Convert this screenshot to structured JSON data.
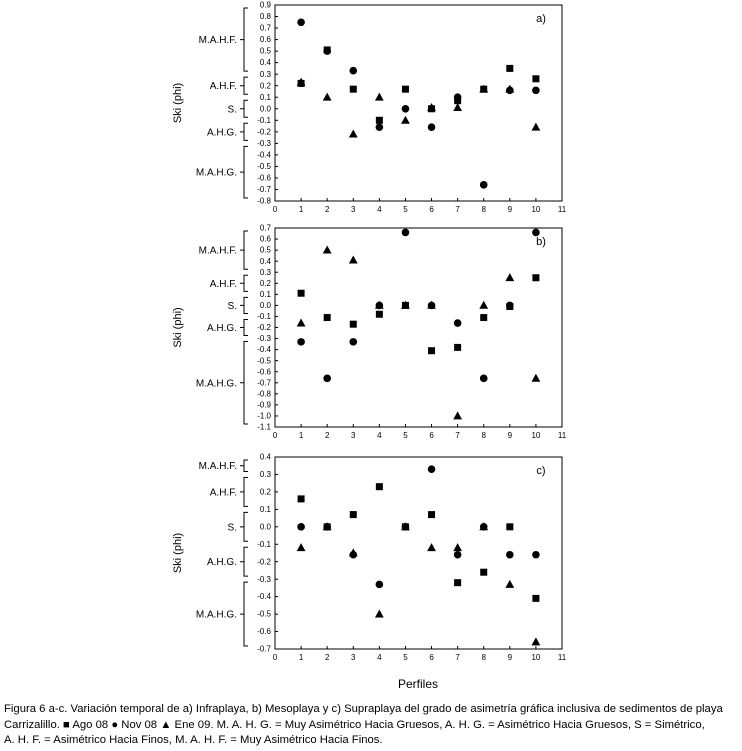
{
  "figure": {
    "x_axis_label": "Perfiles",
    "caption": {
      "line1": "Figura 6 a-c. Variación temporal de a) Infraplaya, b) Mesoplaya y c) Supraplaya del grado de asimetría gráfica inclusiva de sedimentos de playa",
      "line2_prefix": "Carrizalillo.",
      "legend_ago": "Ago 08",
      "legend_nov": "Nov 08",
      "legend_ene": "Ene 09.",
      "line2_suffix": "M. A. H. G. = Muy Asimétrico Hacia Gruesos, A. H. G. = Asimétrico Hacia Gruesos, S = Simétrico,",
      "line3": "A. H. F. = Asimétrico Hacia Finos, M. A. H. F. = Muy Asimétrico Hacia Finos."
    }
  },
  "chart_data": [
    {
      "type": "scatter",
      "panel_label": "a)",
      "ylabel": "Ski (phi)",
      "xlim": [
        0,
        11
      ],
      "ylim": [
        -0.8,
        0.9
      ],
      "yticks": [
        0.9,
        0.8,
        0.7,
        0.6,
        0.5,
        0.4,
        0.3,
        0.2,
        0.1,
        0.0,
        -0.1,
        -0.2,
        -0.3,
        -0.4,
        -0.5,
        -0.6,
        -0.7,
        -0.8
      ],
      "xticks": [
        0,
        1,
        2,
        3,
        4,
        5,
        6,
        7,
        8,
        9,
        10,
        11
      ],
      "classes": [
        {
          "label": "M.A.H.F.",
          "range": [
            0.3,
            0.9
          ]
        },
        {
          "label": "A.H.F.",
          "range": [
            0.1,
            0.3
          ]
        },
        {
          "label": "S.",
          "range": [
            -0.1,
            0.1
          ]
        },
        {
          "label": "A.H.G.",
          "range": [
            -0.3,
            -0.1
          ]
        },
        {
          "label": "M.A.H.G.",
          "range": [
            -0.8,
            -0.3
          ]
        }
      ],
      "series": [
        {
          "name": "Ago 08",
          "marker": "square",
          "x": [
            1,
            2,
            3,
            4,
            5,
            6,
            7,
            8,
            9,
            10
          ],
          "y": [
            0.22,
            0.51,
            0.17,
            -0.1,
            0.17,
            0.0,
            0.07,
            0.17,
            0.35,
            0.26
          ]
        },
        {
          "name": "Nov 08",
          "marker": "circle",
          "x": [
            1,
            2,
            3,
            4,
            5,
            6,
            7,
            8,
            9,
            10
          ],
          "y": [
            0.75,
            0.5,
            0.33,
            -0.16,
            0.0,
            -0.16,
            0.1,
            -0.66,
            0.16,
            0.16
          ]
        },
        {
          "name": "Ene 09",
          "marker": "triangle",
          "x": [
            1,
            2,
            3,
            4,
            5,
            6,
            7,
            8,
            9,
            10
          ],
          "y": [
            0.23,
            0.1,
            -0.22,
            0.1,
            -0.1,
            0.01,
            0.01,
            0.17,
            0.17,
            -0.16
          ]
        }
      ]
    },
    {
      "type": "scatter",
      "panel_label": "b)",
      "ylabel": "Ski (phi)",
      "xlim": [
        0,
        11
      ],
      "ylim": [
        -1.1,
        0.7
      ],
      "yticks": [
        0.7,
        0.6,
        0.5,
        0.4,
        0.3,
        0.2,
        0.1,
        0.0,
        -0.1,
        -0.2,
        -0.3,
        -0.4,
        -0.5,
        -0.6,
        -0.7,
        -0.8,
        -0.9,
        -1.0,
        -1.1
      ],
      "xticks": [
        0,
        1,
        2,
        3,
        4,
        5,
        6,
        7,
        8,
        9,
        10,
        11
      ],
      "classes": [
        {
          "label": "M.A.H.F.",
          "range": [
            0.3,
            0.7
          ]
        },
        {
          "label": "A.H.F.",
          "range": [
            0.1,
            0.3
          ]
        },
        {
          "label": "S.",
          "range": [
            -0.1,
            0.1
          ]
        },
        {
          "label": "A.H.G.",
          "range": [
            -0.3,
            -0.1
          ]
        },
        {
          "label": "M.A.H.G.",
          "range": [
            -1.1,
            -0.3
          ]
        }
      ],
      "series": [
        {
          "name": "Ago 08",
          "marker": "square",
          "x": [
            1,
            2,
            3,
            4,
            5,
            6,
            7,
            8,
            9,
            10
          ],
          "y": [
            0.11,
            -0.11,
            -0.17,
            -0.08,
            0.0,
            -0.41,
            -0.38,
            -0.11,
            -0.01,
            0.25
          ]
        },
        {
          "name": "Nov 08",
          "marker": "circle",
          "x": [
            1,
            2,
            3,
            4,
            5,
            6,
            7,
            8,
            9,
            10
          ],
          "y": [
            -0.33,
            -0.66,
            -0.33,
            0.0,
            0.66,
            0.0,
            -0.16,
            -0.66,
            0.0,
            0.66
          ]
        },
        {
          "name": "Ene 09",
          "marker": "triangle",
          "x": [
            1,
            2,
            3,
            4,
            5,
            6,
            7,
            8,
            9,
            10
          ],
          "y": [
            -0.16,
            0.5,
            0.41,
            0.0,
            0.0,
            0.0,
            -1.0,
            0.0,
            0.25,
            -0.66
          ]
        }
      ]
    },
    {
      "type": "scatter",
      "panel_label": "c)",
      "ylabel": "Ski (phi)",
      "xlim": [
        0,
        11
      ],
      "ylim": [
        -0.7,
        0.4
      ],
      "yticks": [
        0.4,
        0.3,
        0.2,
        0.1,
        0.0,
        -0.1,
        -0.2,
        -0.3,
        -0.4,
        -0.5,
        -0.6,
        -0.7
      ],
      "xticks": [
        0,
        1,
        2,
        3,
        4,
        5,
        6,
        7,
        8,
        9,
        10,
        11
      ],
      "classes": [
        {
          "label": "M.A.H.F.",
          "range": [
            0.3,
            0.4
          ]
        },
        {
          "label": "A.H.F.",
          "range": [
            0.1,
            0.3
          ]
        },
        {
          "label": "S.",
          "range": [
            -0.1,
            0.1
          ]
        },
        {
          "label": "A.H.G.",
          "range": [
            -0.3,
            -0.1
          ]
        },
        {
          "label": "M.A.H.G.",
          "range": [
            -0.7,
            -0.3
          ]
        }
      ],
      "series": [
        {
          "name": "Ago 08",
          "marker": "square",
          "x": [
            1,
            2,
            3,
            4,
            5,
            6,
            7,
            8,
            9,
            10
          ],
          "y": [
            0.16,
            0.0,
            0.07,
            0.23,
            0.0,
            0.07,
            -0.32,
            -0.26,
            0.0,
            -0.41
          ]
        },
        {
          "name": "Nov 08",
          "marker": "circle",
          "x": [
            1,
            2,
            3,
            4,
            5,
            6,
            7,
            8,
            9,
            10
          ],
          "y": [
            0.0,
            0.0,
            -0.16,
            -0.33,
            0.0,
            0.33,
            -0.16,
            0.0,
            -0.16,
            -0.16
          ]
        },
        {
          "name": "Ene 09",
          "marker": "triangle",
          "x": [
            1,
            2,
            3,
            4,
            5,
            6,
            7,
            8,
            9,
            10
          ],
          "y": [
            -0.12,
            0.0,
            -0.15,
            -0.5,
            0.0,
            -0.12,
            -0.12,
            0.0,
            -0.33,
            -0.66
          ]
        }
      ]
    }
  ]
}
